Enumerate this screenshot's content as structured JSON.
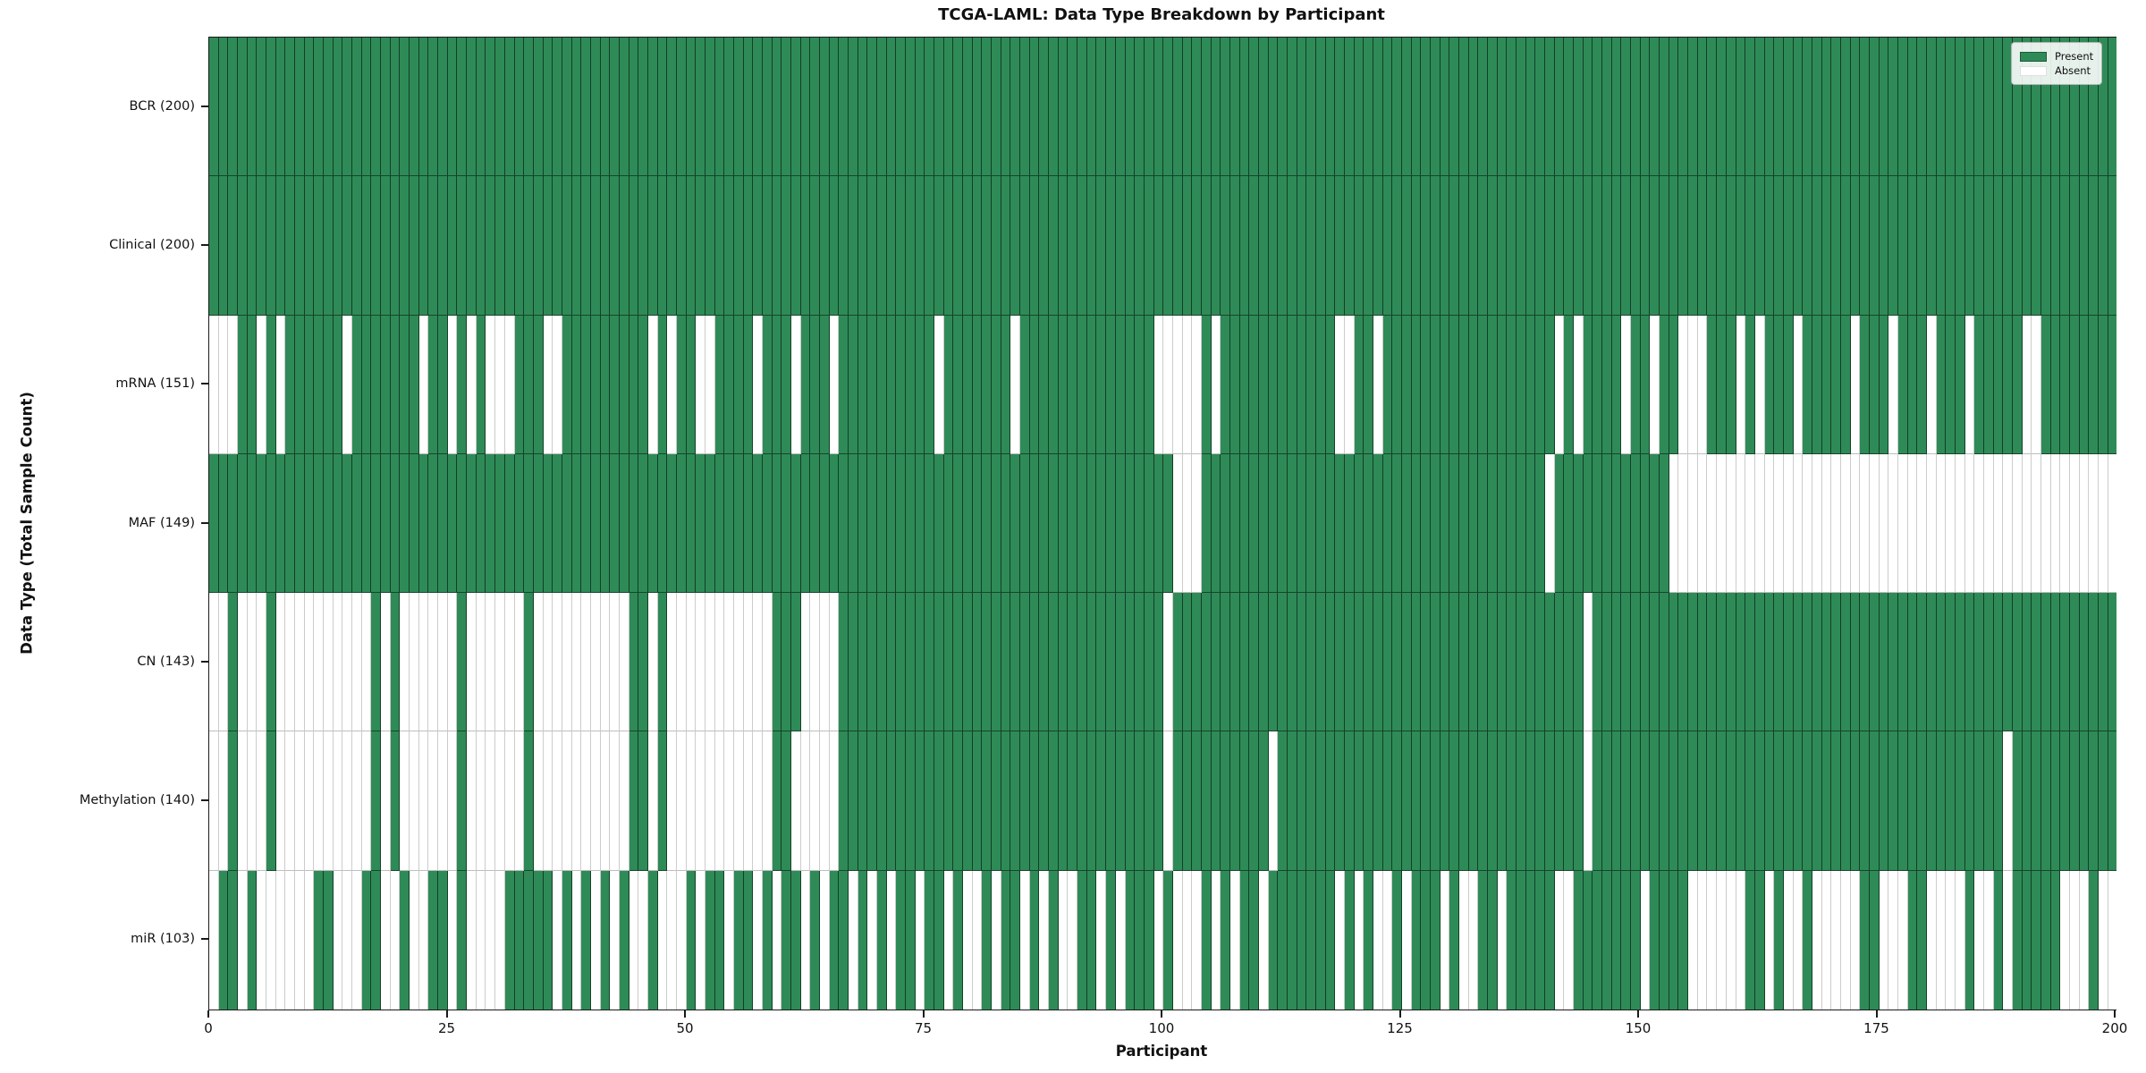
{
  "colors": {
    "present": "#2e8b57",
    "absent": "#ffffff",
    "plot_border": "#1a1a1a"
  },
  "legend": {
    "present_label": "Present",
    "absent_label": "Absent"
  },
  "chart_data": {
    "type": "heatmap",
    "title": "TCGA-LAML: Data Type Breakdown by Participant",
    "xlabel": "Participant",
    "ylabel": "Data Type (Total Sample Count)",
    "x_range": [
      0,
      200
    ],
    "x_ticks": [
      0,
      25,
      50,
      75,
      100,
      125,
      150,
      175,
      200
    ],
    "n_participants": 200,
    "legend": [
      "Present",
      "Absent"
    ],
    "legend_position": "upper right",
    "grid": false,
    "rows": [
      {
        "label": "BCR (200)",
        "name": "BCR",
        "total": 200,
        "presence": "11111111111111111111111111111111111111111111111111111111111111111111111111111111111111111111111111111111111111111111111111111111111111111111111111111111111111111111111111111111111111111111111111111111"
      },
      {
        "label": "Clinical (200)",
        "name": "Clinical",
        "total": 200,
        "presence": "11111111111111111111111111111111111111111111111111111111111111111111111111111111111111111111111111111111111111111111111111111111111111111111111111111111111111111111111111111111111111111111111111111111"
      },
      {
        "label": "mRNA (151)",
        "name": "mRNA",
        "total": 151,
        "presence": "00011010111111011111110110101000111001111111110101100111101110111011111111110111111101111111111111100000101111111111110011011111111111111111101011110110110001110101110111110111011101110111110011111111"
      },
      {
        "label": "MAF (149)",
        "name": "MAF",
        "total": 149,
        "presence": "11111111111111111111111111111111111111111111111111111111111111111111111111111111111111111111111111111000111111111111111111111111111111111111011111111111100000000000000000000000000000000000000000000000"
      },
      {
        "label": "CN (143)",
        "name": "CN",
        "total": 143,
        "presence": "00100010000000000101000000100000010000000000110100000000000111000011111111111111111111111111111111110111111111111111111111111111111111111111111101111111111111111111111111111111111111111111111111111111"
      },
      {
        "label": "Methylation (140)",
        "name": "Methylation",
        "total": 140,
        "presence": "00100010000000000101000000100000010000000000110100000000000110000011111111111111111111111111111111110111111111101111111111111111111111111111111101111111111111111111111111111111111111111111011111111111"
      },
      {
        "label": "miR (103)",
        "name": "miR",
        "total": 103,
        "presence": "01101000000110001100100110100001111101010101001000101101101011010110101011011010010110101001101011101000101011011111110101001011101001101111100111111101111000000110100100000110001100001001011111000100"
      }
    ]
  }
}
